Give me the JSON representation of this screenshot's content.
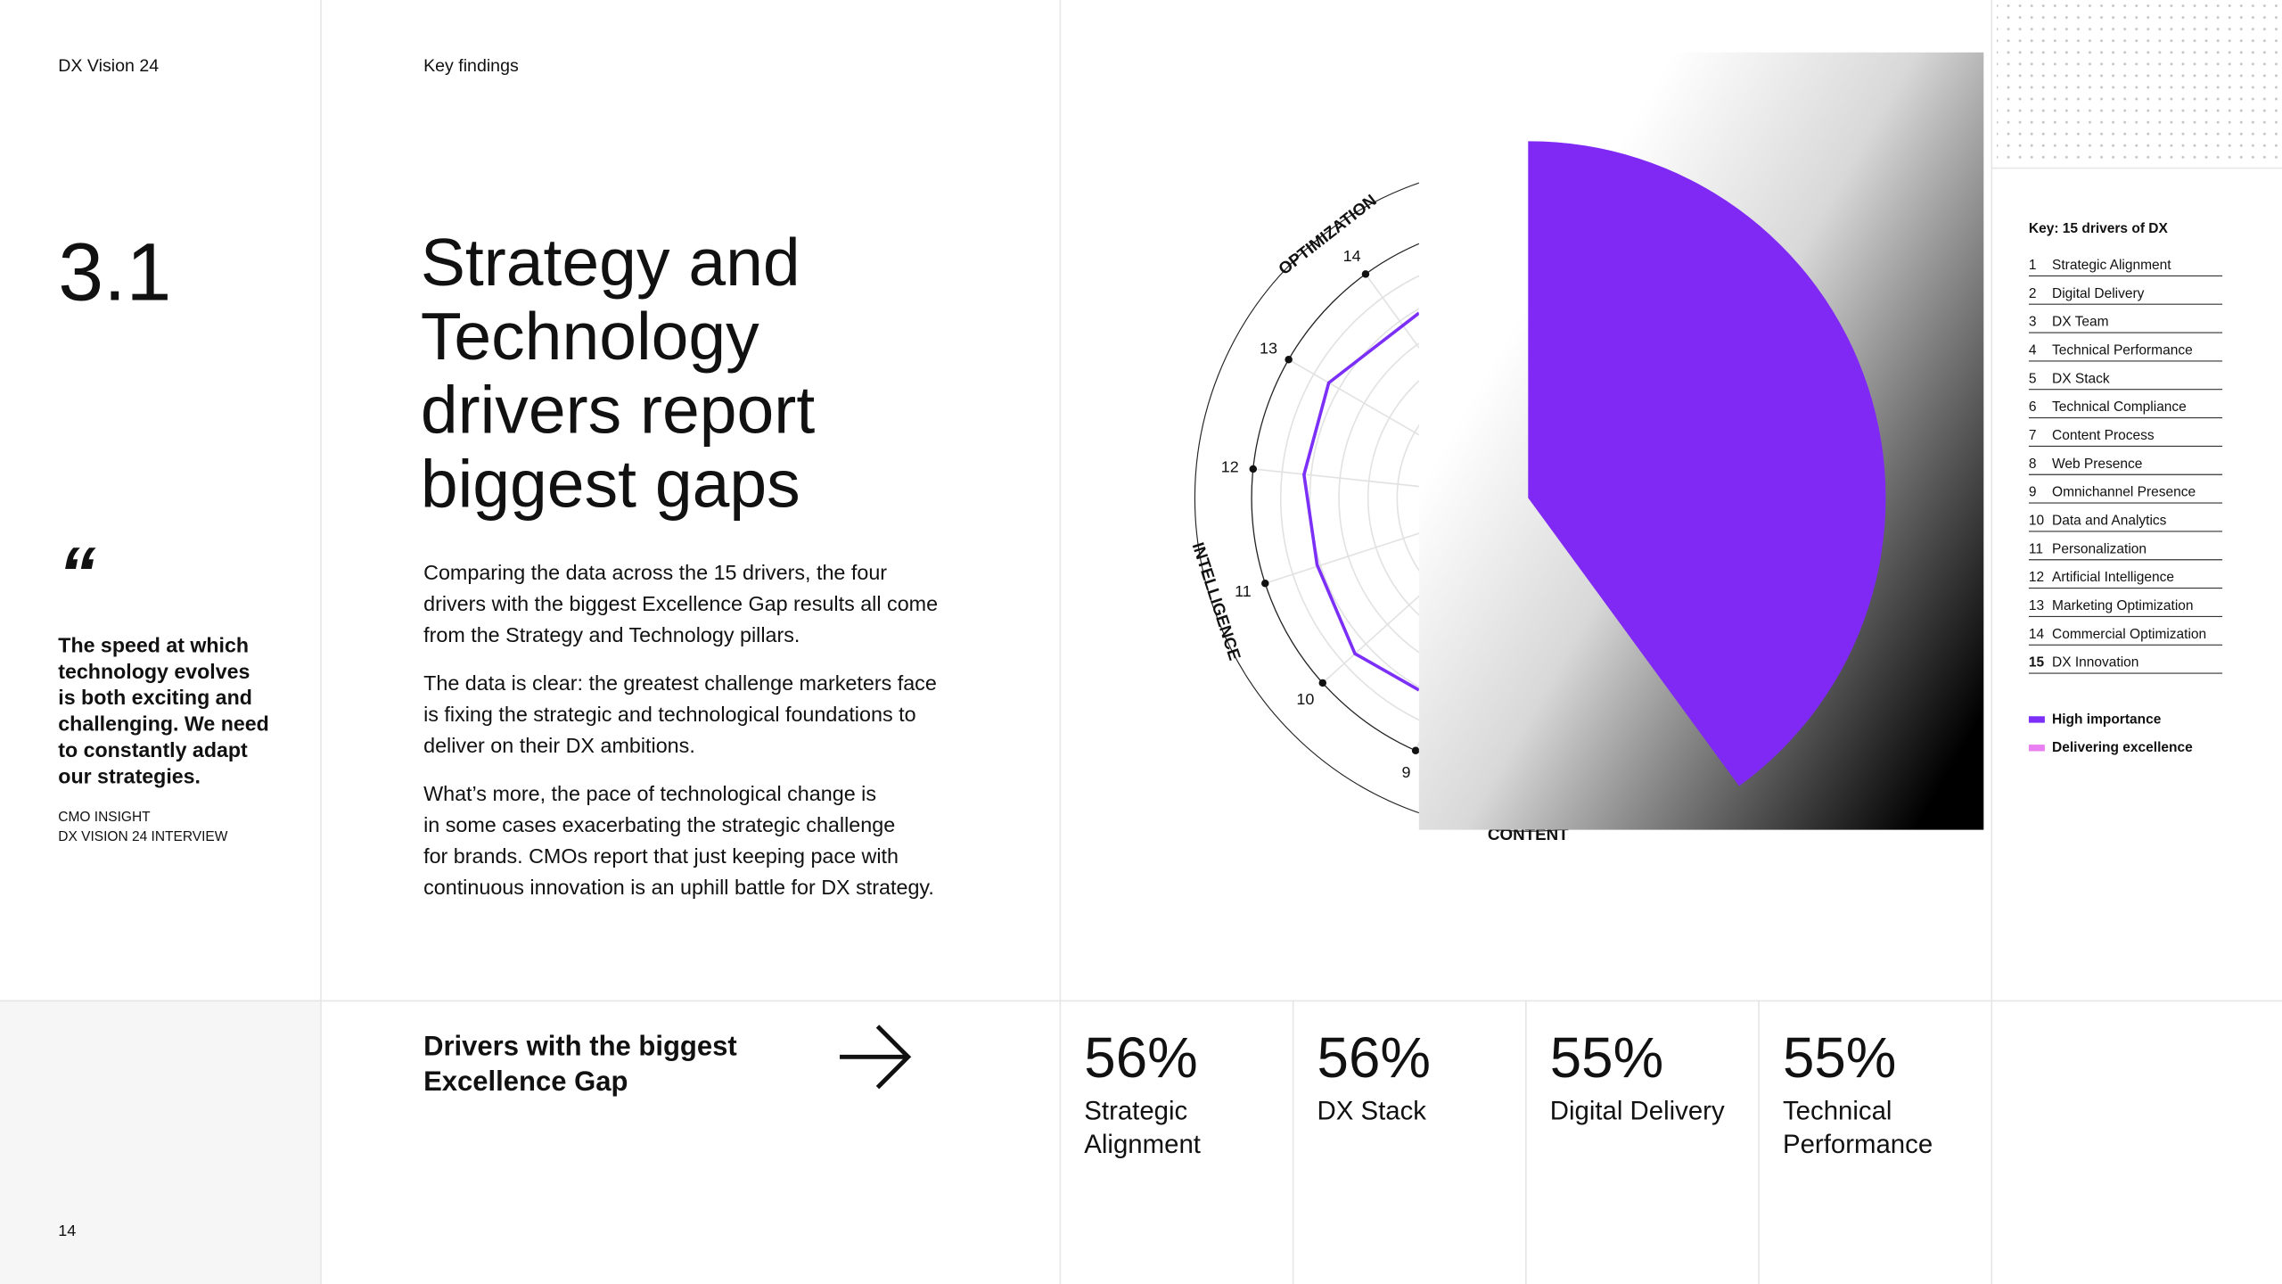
{
  "header": {
    "brand": "DX Vision 24",
    "section": "Key findings"
  },
  "section_number": "3.1",
  "title_lines": [
    "Strategy and",
    "Technology",
    "drivers report",
    "biggest gaps"
  ],
  "quote": {
    "lines": [
      "The speed at which",
      "technology evolves",
      "is both exciting and",
      "challenging. We need",
      "to constantly adapt",
      "our strategies."
    ],
    "source_lines": [
      "CMO INSIGHT",
      "DX VISION 24 INTERVIEW"
    ]
  },
  "paragraphs": [
    [
      "Comparing the data across the 15 drivers, the four",
      "drivers with the biggest Excellence Gap results all come",
      "from the Strategy and Technology pillars."
    ],
    [
      "The data is clear: the greatest challenge marketers face",
      "is fixing the strategic and technological foundations to",
      "deliver on their DX ambitions."
    ],
    [
      "What’s more, the pace of technological change is",
      "in some cases exacerbating the strategic challenge",
      "for brands. CMOs report that just keeping pace with",
      "continuous innovation is an uphill battle for DX strategy."
    ]
  ],
  "radar": {
    "axis_labels": [
      "OPTIMIZATION",
      "INTELLIGENCE",
      "CONTENT"
    ],
    "spoke_labels": [
      "14",
      "13",
      "12",
      "11",
      "10",
      "9"
    ]
  },
  "key": {
    "title": "Key: 15 drivers of DX",
    "items": [
      {
        "number": "1",
        "label": "Strategic Alignment"
      },
      {
        "number": "2",
        "label": "Digital Delivery"
      },
      {
        "number": "3",
        "label": "DX Team"
      },
      {
        "number": "4",
        "label": "Technical Performance"
      },
      {
        "number": "5",
        "label": "DX Stack"
      },
      {
        "number": "6",
        "label": "Technical Compliance"
      },
      {
        "number": "7",
        "label": "Content Process"
      },
      {
        "number": "8",
        "label": "Web Presence"
      },
      {
        "number": "9",
        "label": "Omnichannel Presence"
      },
      {
        "number": "10",
        "label": "Data and Analytics"
      },
      {
        "number": "11",
        "label": "Personalization"
      },
      {
        "number": "12",
        "label": "Artificial Intelligence"
      },
      {
        "number": "13",
        "label": "Marketing Optimization"
      },
      {
        "number": "14",
        "label": "Commercial Optimization"
      },
      {
        "number": "15",
        "label": "DX Innovation"
      }
    ],
    "legend": [
      {
        "label": "High importance",
        "color": "#7b2ff7"
      },
      {
        "label": "Delivering excellence",
        "color": "#e97ff0"
      }
    ]
  },
  "highlights": {
    "title_lines": [
      "Drivers with the biggest",
      "Excellence Gap"
    ],
    "items": [
      {
        "value": "56%",
        "label_lines": [
          "Strategic",
          "Alignment"
        ]
      },
      {
        "value": "56%",
        "label_lines": [
          "DX Stack"
        ]
      },
      {
        "value": "55%",
        "label_lines": [
          "Digital Delivery"
        ]
      },
      {
        "value": "55%",
        "label_lines": [
          "Technical",
          "Performance"
        ]
      }
    ]
  },
  "page_number": "14"
}
